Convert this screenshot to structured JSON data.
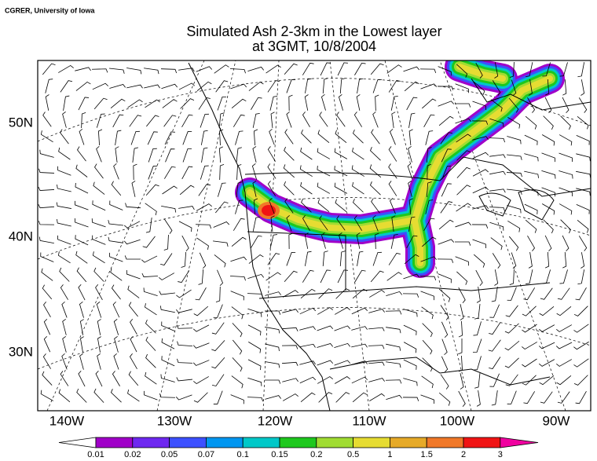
{
  "header": {
    "credit": "CGRER, University of Iowa",
    "title_line1": "Simulated Ash 2-3km in the Lowest layer",
    "title_line2": "at 3GMT, 10/8/2004"
  },
  "latitude_labels": [
    "50N",
    "40N",
    "30N"
  ],
  "longitude_labels": [
    "140W",
    "130W",
    "120W",
    "110W",
    "100W",
    "90W"
  ],
  "colorbar": {
    "labels": [
      0.01,
      0.02,
      0.05,
      0.07,
      0.1,
      0.15,
      0.2,
      0.5,
      1,
      1.5,
      2,
      3
    ],
    "under_color": "#ffffff",
    "colors": [
      "#a000c8",
      "#6e28f0",
      "#3c50ff",
      "#0096f0",
      "#00c8c8",
      "#1ec81e",
      "#a0dc32",
      "#e6dc32",
      "#e6aa28",
      "#f07828",
      "#f01414"
    ],
    "over_color": "#f000a0"
  }
}
